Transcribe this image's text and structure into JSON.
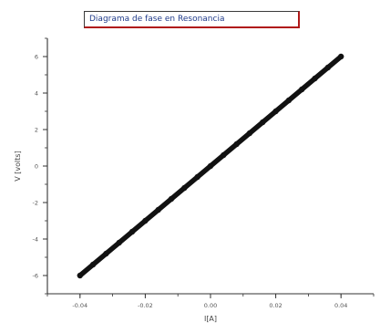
{
  "chart_data": {
    "type": "scatter",
    "title": "Diagrama de fase en Resonancia",
    "xlabel": "I[A]",
    "ylabel": "V [volts]",
    "xlim": [
      -0.05,
      0.05
    ],
    "ylim": [
      -7,
      7
    ],
    "xticks": [
      -0.04,
      -0.02,
      0.0,
      0.02,
      0.04
    ],
    "xtick_labels": [
      "-0.04",
      "-0.02",
      "0.00",
      "0.02",
      "0.04"
    ],
    "yticks": [
      -6,
      -4,
      -2,
      0,
      2,
      4,
      6
    ],
    "ytick_labels": [
      "-6",
      "-4",
      "-2",
      "0",
      "2",
      "4",
      "6"
    ],
    "grid": false,
    "legend": "none",
    "series": [
      {
        "color": "#111111",
        "x": [
          -0.04,
          -0.036,
          -0.032,
          -0.028,
          -0.024,
          -0.02,
          -0.016,
          -0.012,
          -0.008,
          -0.004,
          0.0,
          0.004,
          0.008,
          0.012,
          0.016,
          0.02,
          0.024,
          0.028,
          0.032,
          0.036,
          0.04
        ],
        "y": [
          -6.0,
          -5.4,
          -4.8,
          -4.2,
          -3.6,
          -3.0,
          -2.4,
          -1.8,
          -1.2,
          -0.6,
          0.0,
          0.6,
          1.2,
          1.8,
          2.4,
          3.0,
          3.6,
          4.2,
          4.8,
          5.4,
          6.0
        ]
      }
    ]
  }
}
